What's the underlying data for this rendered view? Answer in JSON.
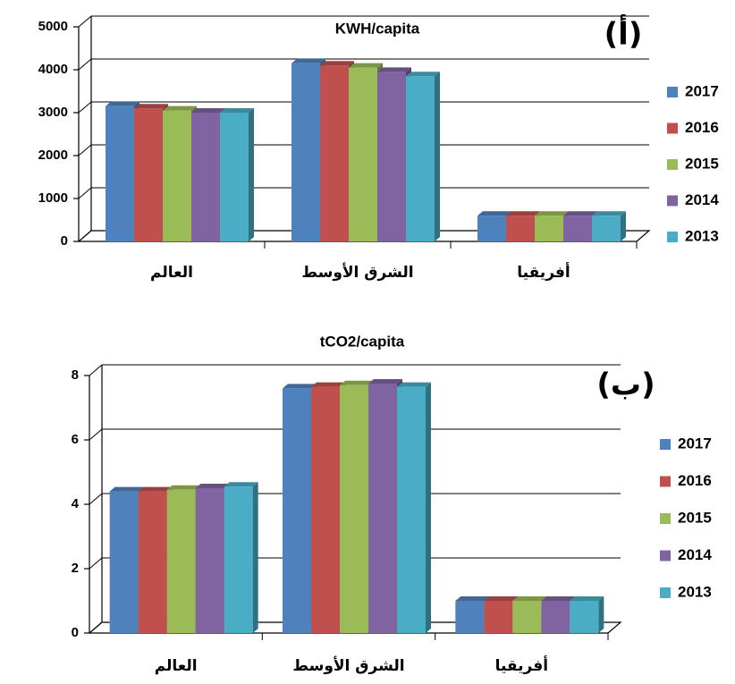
{
  "chart_data": [
    {
      "type": "bar",
      "title": "KWH/capita",
      "annotation": "(أ)",
      "categories": [
        "العالم",
        "الشرق الأوسط",
        "أفريقيا"
      ],
      "series": [
        {
          "name": "2017",
          "color": "#4f81bd",
          "values": [
            3150,
            4150,
            600
          ]
        },
        {
          "name": "2016",
          "color": "#c0504d",
          "values": [
            3100,
            4100,
            600
          ]
        },
        {
          "name": "2015",
          "color": "#9bbb59",
          "values": [
            3050,
            4050,
            600
          ]
        },
        {
          "name": "2014",
          "color": "#8064a2",
          "values": [
            3000,
            3950,
            600
          ]
        },
        {
          "name": "2013",
          "color": "#4bacc6",
          "values": [
            3000,
            3850,
            600
          ]
        }
      ],
      "ylim": [
        0,
        5000
      ],
      "yticks": [
        0,
        1000,
        2000,
        3000,
        4000,
        5000
      ],
      "grid": true,
      "legend": "right"
    },
    {
      "type": "bar",
      "title": "tCO2/capita",
      "annotation": "(ب)",
      "categories": [
        "العالم",
        "الشرق الأوسط",
        "أفريقيا"
      ],
      "series": [
        {
          "name": "2017",
          "color": "#4f81bd",
          "values": [
            4.4,
            7.6,
            1.0
          ]
        },
        {
          "name": "2016",
          "color": "#c0504d",
          "values": [
            4.4,
            7.65,
            1.0
          ]
        },
        {
          "name": "2015",
          "color": "#9bbb59",
          "values": [
            4.45,
            7.7,
            1.0
          ]
        },
        {
          "name": "2014",
          "color": "#8064a2",
          "values": [
            4.5,
            7.75,
            1.0
          ]
        },
        {
          "name": "2013",
          "color": "#4bacc6",
          "values": [
            4.55,
            7.65,
            1.0
          ]
        }
      ],
      "ylim": [
        0,
        8
      ],
      "yticks": [
        0,
        2,
        4,
        6,
        8
      ],
      "grid": true,
      "legend": "right"
    }
  ]
}
